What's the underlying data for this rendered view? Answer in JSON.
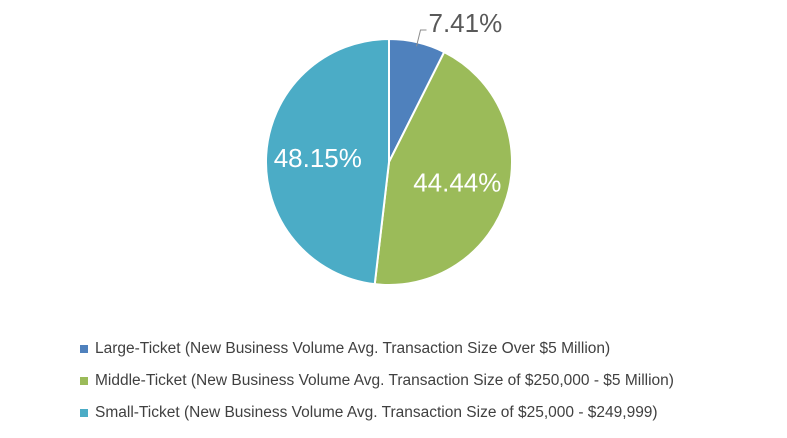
{
  "chart_data": {
    "type": "pie",
    "categories": [
      "Large-Ticket (New Business Volume Avg. Transaction Size Over $5 Million)",
      "Middle-Ticket (New Business Volume Avg. Transaction Size of $250,000 - $5 Million)",
      "Small-Ticket (New Business Volume Avg. Transaction Size of $25,000 - $249,999)"
    ],
    "values": [
      7.41,
      44.44,
      48.15
    ],
    "data_labels": [
      "7.41%",
      "44.44%",
      "48.15%"
    ],
    "colors": [
      "#4F81BD",
      "#9BBB59",
      "#4BACC6"
    ],
    "label_colors": [
      "#595959",
      "#ffffff",
      "#ffffff"
    ],
    "title": "",
    "legend_position": "bottom",
    "start_angle_deg": 0,
    "direction": "clockwise"
  }
}
